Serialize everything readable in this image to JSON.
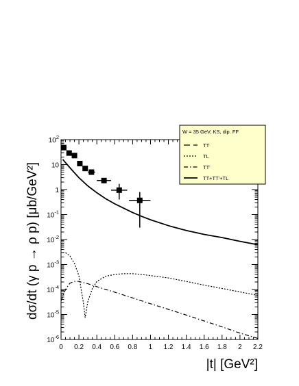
{
  "chart_data": {
    "type": "line",
    "title": "",
    "xlabel": "|t| [GeV²]",
    "ylabel": "dσ/dt (γ p → ρ p) [μb/GeV²]",
    "xlim": [
      0,
      2.2
    ],
    "ylim": [
      1e-06,
      100
    ],
    "yscale": "log",
    "x_ticks": [
      "0",
      "0.2",
      "0.4",
      "0.6",
      "0.8",
      "1",
      "1.2",
      "1.4",
      "1.6",
      "1.8",
      "2",
      "2.2"
    ],
    "y_ticks": [
      {
        "base": "10",
        "exp": "-6"
      },
      {
        "base": "10",
        "exp": "-5"
      },
      {
        "base": "10",
        "exp": "-4"
      },
      {
        "base": "10",
        "exp": "-3"
      },
      {
        "base": "10",
        "exp": "-2"
      },
      {
        "base": "10",
        "exp": "-1"
      },
      {
        "base": "1",
        "exp": ""
      },
      {
        "base": "10",
        "exp": ""
      },
      {
        "base": "10",
        "exp": "2"
      }
    ],
    "legend": {
      "position": "top-right",
      "header": "W = 35 GeV, KS, dip. FF",
      "entries": [
        "TT",
        "TL",
        "TT'",
        "TT+TT'+TL"
      ]
    },
    "series": [
      {
        "name": "TT",
        "style": "dashed",
        "x": [
          0.02,
          0.05,
          0.1,
          0.15,
          0.2,
          0.3,
          0.4,
          0.5,
          0.6,
          0.7,
          0.8,
          0.9,
          1.0,
          1.2,
          1.4,
          1.6,
          1.8,
          2.0,
          2.2
        ],
        "y": [
          16,
          12,
          7.5,
          4.7,
          3.0,
          1.4,
          0.75,
          0.43,
          0.27,
          0.18,
          0.12,
          0.085,
          0.062,
          0.036,
          0.023,
          0.016,
          0.012,
          0.0085,
          0.0062
        ]
      },
      {
        "name": "TL",
        "style": "dotted",
        "x": [
          0.02,
          0.05,
          0.1,
          0.15,
          0.2,
          0.25,
          0.27,
          0.3,
          0.35,
          0.4,
          0.5,
          0.6,
          0.7,
          0.8,
          0.9,
          1.0,
          1.2,
          1.4,
          1.6,
          1.8,
          2.0,
          2.2
        ],
        "y": [
          0.003,
          0.003,
          0.0022,
          0.0011,
          0.00035,
          3e-05,
          7.5e-06,
          3.3e-05,
          0.00011,
          0.00021,
          0.00034,
          0.0004,
          0.00043,
          0.00043,
          0.0004,
          0.00036,
          0.00029,
          0.00021,
          0.00015,
          0.00011,
          8e-05,
          5.8e-05
        ]
      },
      {
        "name": "TT'",
        "style": "dashdot",
        "x": [
          0.0,
          0.05,
          0.1,
          0.15,
          0.2,
          0.3,
          0.4,
          0.5,
          0.6,
          0.8,
          1.0,
          1.2,
          1.4,
          1.6,
          1.8,
          2.0,
          2.2
        ],
        "y": [
          3.5e-05,
          0.0001,
          0.00018,
          0.00021,
          0.00021,
          0.00017,
          0.00013,
          0.0001,
          7.8e-05,
          4.6e-05,
          2.7e-05,
          1.6e-05,
          9.5e-06,
          5.5e-06,
          3.2e-06,
          1.8e-06,
          1.1e-06
        ]
      },
      {
        "name": "TT+TT'+TL",
        "style": "solid",
        "x": [
          0.02,
          0.05,
          0.1,
          0.15,
          0.2,
          0.3,
          0.4,
          0.5,
          0.6,
          0.7,
          0.8,
          0.9,
          1.0,
          1.2,
          1.4,
          1.6,
          1.8,
          2.0,
          2.2
        ],
        "y": [
          16,
          12,
          7.5,
          4.7,
          3.0,
          1.4,
          0.75,
          0.43,
          0.27,
          0.18,
          0.12,
          0.085,
          0.062,
          0.036,
          0.023,
          0.016,
          0.012,
          0.0085,
          0.0062
        ]
      }
    ],
    "data_points": [
      {
        "x": 0.03,
        "y": 48,
        "xerr": 0.03,
        "ylow": 48,
        "yhigh": 48
      },
      {
        "x": 0.09,
        "y": 29,
        "xerr": 0.03,
        "ylow": 29,
        "yhigh": 29
      },
      {
        "x": 0.15,
        "y": 23,
        "xerr": 0.03,
        "ylow": 23,
        "yhigh": 23
      },
      {
        "x": 0.21,
        "y": 11,
        "xerr": 0.03,
        "ylow": 11,
        "yhigh": 11
      },
      {
        "x": 0.27,
        "y": 7,
        "xerr": 0.03,
        "ylow": 7,
        "yhigh": 7
      },
      {
        "x": 0.34,
        "y": 5,
        "xerr": 0.04,
        "ylow": 4.3,
        "yhigh": 5.7
      },
      {
        "x": 0.48,
        "y": 2.3,
        "xerr": 0.08,
        "ylow": 1.8,
        "yhigh": 2.9
      },
      {
        "x": 0.65,
        "y": 0.95,
        "xerr": 0.09,
        "ylow": 0.4,
        "yhigh": 1.7
      },
      {
        "x": 0.88,
        "y": 0.37,
        "xerr": 0.12,
        "ylow": 0.03,
        "yhigh": 0.8
      }
    ]
  }
}
